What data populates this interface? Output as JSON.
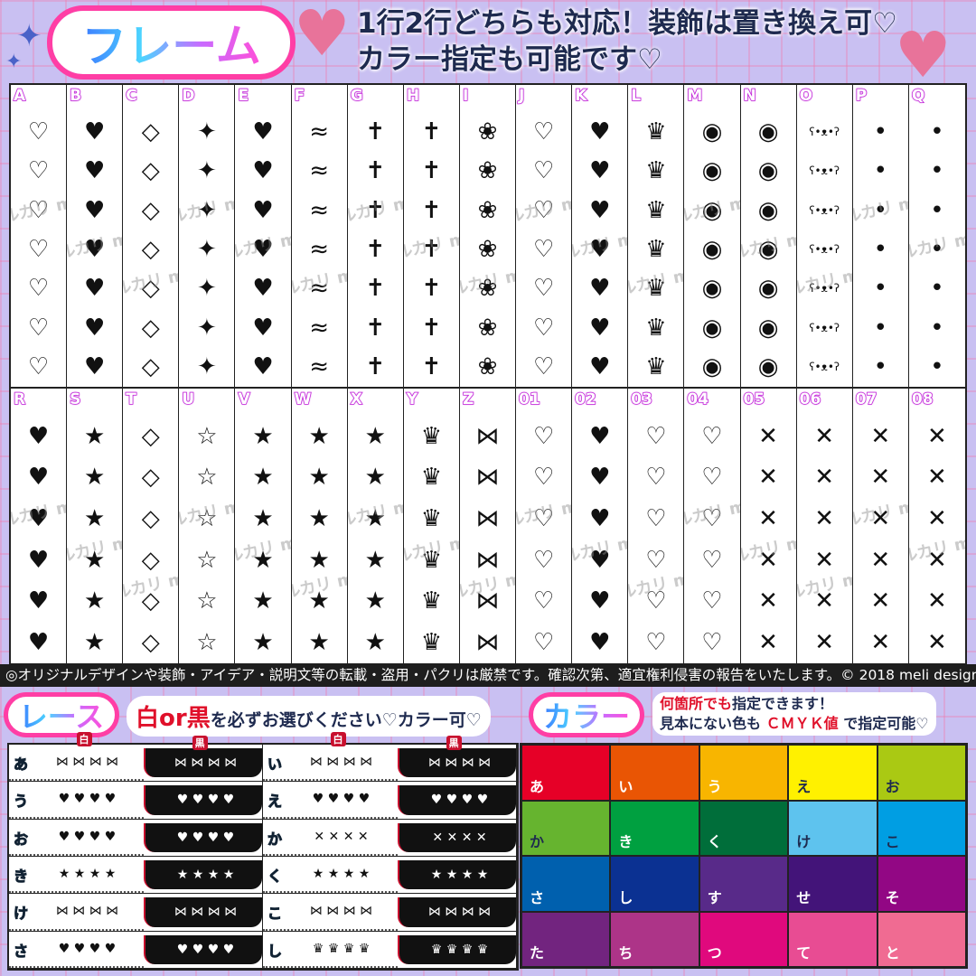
{
  "header": {
    "title": "フレーム",
    "line1": "1行2行どちらも対応！装飾は置き換え可♡",
    "line2": "カラー指定も可能です♡"
  },
  "motif_glyphs": {
    "heart": "♥",
    "heart-outline": "♡",
    "star": "★",
    "star-outline": "☆",
    "sparkle": "✦",
    "diamond": "◇",
    "bow": "⋈",
    "cross": "✝",
    "crown": "♛",
    "rose": "❀",
    "candy": "◉",
    "wing": "≈",
    "bear": "ʕ•ᴥ•ʔ",
    "x": "✕",
    "dot": "•"
  },
  "frames_row1": [
    {
      "label": "A",
      "motif": "heart-outline"
    },
    {
      "label": "B",
      "motif": "heart"
    },
    {
      "label": "C",
      "motif": "diamond"
    },
    {
      "label": "D",
      "motif": "sparkle"
    },
    {
      "label": "E",
      "motif": "heart"
    },
    {
      "label": "F",
      "motif": "wing"
    },
    {
      "label": "G",
      "motif": "cross"
    },
    {
      "label": "H",
      "motif": "cross"
    },
    {
      "label": "I",
      "motif": "rose"
    },
    {
      "label": "J",
      "motif": "heart-outline"
    },
    {
      "label": "K",
      "motif": "heart"
    },
    {
      "label": "L",
      "motif": "crown"
    },
    {
      "label": "M",
      "motif": "candy"
    },
    {
      "label": "N",
      "motif": "candy"
    },
    {
      "label": "O",
      "motif": "bear"
    },
    {
      "label": "P",
      "motif": "dot"
    },
    {
      "label": "Q",
      "motif": "dot"
    }
  ],
  "frames_row2": [
    {
      "label": "R",
      "motif": "heart"
    },
    {
      "label": "S",
      "motif": "star"
    },
    {
      "label": "T",
      "motif": "diamond"
    },
    {
      "label": "U",
      "motif": "star-outline"
    },
    {
      "label": "V",
      "motif": "star"
    },
    {
      "label": "W",
      "motif": "star"
    },
    {
      "label": "X",
      "motif": "star"
    },
    {
      "label": "Y",
      "motif": "crown"
    },
    {
      "label": "Z",
      "motif": "bow"
    },
    {
      "label": "01",
      "motif": "heart-outline"
    },
    {
      "label": "02",
      "motif": "heart"
    },
    {
      "label": "03",
      "motif": "heart-outline"
    },
    {
      "label": "04",
      "motif": "heart-outline"
    },
    {
      "label": "05",
      "motif": "x"
    },
    {
      "label": "06",
      "motif": "x"
    },
    {
      "label": "07",
      "motif": "x"
    },
    {
      "label": "08",
      "motif": "x"
    }
  ],
  "watermark": "メルカリ meli design 転載盗用持込厳禁",
  "copyright": "◎オリジナルデザインや装飾・アイデア・説明文等の転載・盗用・パクリは厳禁です。確認次第、適宜権利侵害の報告をいたします。© 2018 meli design",
  "lace_section": {
    "title": "レース",
    "white": "白",
    "or": "or",
    "black": "黒",
    "note": "を必ずお選びください♡カラー可♡",
    "col_white": "白",
    "col_black": "黒",
    "items": [
      {
        "kana": "あ",
        "motif": "bow"
      },
      {
        "kana": "い",
        "motif": "bow"
      },
      {
        "kana": "う",
        "motif": "heart"
      },
      {
        "kana": "え",
        "motif": "heart"
      },
      {
        "kana": "お",
        "motif": "heart"
      },
      {
        "kana": "か",
        "motif": "x"
      },
      {
        "kana": "き",
        "motif": "star"
      },
      {
        "kana": "く",
        "motif": "star"
      },
      {
        "kana": "け",
        "motif": "bow"
      },
      {
        "kana": "こ",
        "motif": "bow"
      },
      {
        "kana": "さ",
        "motif": "heart"
      },
      {
        "kana": "し",
        "motif": "crown"
      }
    ]
  },
  "color_section": {
    "title": "カラー",
    "note_red": "何箇所でも",
    "note1": "指定できます！",
    "note2a": "見本にない色も",
    "cmyk": "ＣＭＹＫ値",
    "note2b": "で指定可能♡",
    "swatches": [
      {
        "kana": "あ",
        "color": "#e60027",
        "text": "#ffffff"
      },
      {
        "kana": "い",
        "color": "#e95504",
        "text": "#ffffff"
      },
      {
        "kana": "う",
        "color": "#f8b500",
        "text": "#ffffff"
      },
      {
        "kana": "え",
        "color": "#fff100",
        "text": "#1e2a4f"
      },
      {
        "kana": "お",
        "color": "#aac913",
        "text": "#1e2a4f"
      },
      {
        "kana": "か",
        "color": "#66b42f",
        "text": "#1e2a4f"
      },
      {
        "kana": "き",
        "color": "#00a040",
        "text": "#ffffff"
      },
      {
        "kana": "く",
        "color": "#006e3a",
        "text": "#ffffff"
      },
      {
        "kana": "け",
        "color": "#5ec3ee",
        "text": "#1e2a4f"
      },
      {
        "kana": "こ",
        "color": "#009ee3",
        "text": "#1e2a4f"
      },
      {
        "kana": "さ",
        "color": "#0060ae",
        "text": "#ffffff"
      },
      {
        "kana": "し",
        "color": "#0b3192",
        "text": "#ffffff"
      },
      {
        "kana": "す",
        "color": "#582a89",
        "text": "#ffffff"
      },
      {
        "kana": "せ",
        "color": "#431479",
        "text": "#ffffff"
      },
      {
        "kana": "そ",
        "color": "#920784",
        "text": "#ffffff"
      },
      {
        "kana": "た",
        "color": "#72247f",
        "text": "#ffffff"
      },
      {
        "kana": "ち",
        "color": "#ad3488",
        "text": "#ffffff"
      },
      {
        "kana": "つ",
        "color": "#e0097d",
        "text": "#ffffff"
      },
      {
        "kana": "て",
        "color": "#e84c93",
        "text": "#ffffff"
      },
      {
        "kana": "と",
        "color": "#f06b92",
        "text": "#ffffff"
      }
    ]
  }
}
